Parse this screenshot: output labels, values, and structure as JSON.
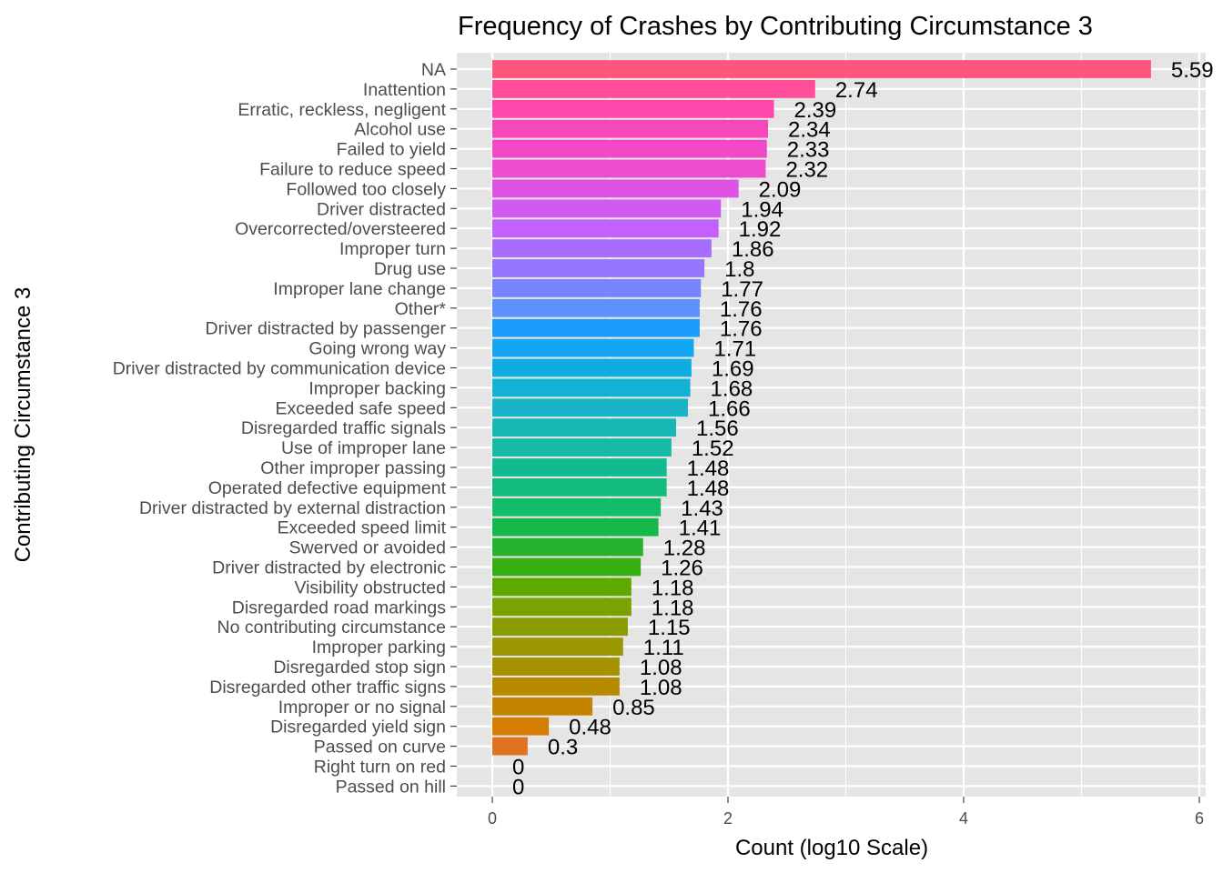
{
  "chart_data": {
    "type": "bar",
    "orientation": "horizontal",
    "title": "Frequency of Crashes by Contributing Circumstance 3",
    "xlabel": "Count (log10 Scale)",
    "ylabel": "Contributing Circumstance 3",
    "xlim": [
      0,
      6
    ],
    "x_ticks": [
      0,
      2,
      4,
      6
    ],
    "grid": true,
    "legend": "none",
    "categories": [
      "NA",
      "Inattention",
      "Erratic, reckless, negligent",
      "Alcohol use",
      "Failed to yield",
      "Failure to reduce speed",
      "Followed too closely",
      "Driver distracted",
      "Overcorrected/oversteered",
      "Improper turn",
      "Drug use",
      "Improper lane change",
      "Other*",
      "Driver distracted by passenger",
      "Going wrong way",
      "Driver distracted by communication device",
      "Improper backing",
      "Exceeded safe speed",
      "Disregarded traffic signals",
      "Use of improper lane",
      "Other improper passing",
      "Operated defective equipment",
      "Driver distracted by external distraction",
      "Exceeded speed limit",
      "Swerved or avoided",
      "Driver distracted by electronic",
      "Visibility obstructed",
      "Disregarded road markings",
      "No contributing circumstance",
      "Improper parking",
      "Disregarded stop sign",
      "Disregarded other traffic signs",
      "Improper or no signal",
      "Disregarded yield sign",
      "Passed on curve",
      "Right turn on red",
      "Passed on hill"
    ],
    "values": [
      5.59,
      2.74,
      2.39,
      2.34,
      2.33,
      2.32,
      2.09,
      1.94,
      1.92,
      1.86,
      1.8,
      1.77,
      1.76,
      1.76,
      1.71,
      1.69,
      1.68,
      1.66,
      1.56,
      1.52,
      1.48,
      1.48,
      1.43,
      1.41,
      1.28,
      1.26,
      1.18,
      1.18,
      1.15,
      1.11,
      1.08,
      1.08,
      0.85,
      0.48,
      0.3,
      0,
      0
    ],
    "value_labels": [
      "5.59",
      "2.74",
      "2.39",
      "2.34",
      "2.33",
      "2.32",
      "2.09",
      "1.94",
      "1.92",
      "1.86",
      "1.8",
      "1.77",
      "1.76",
      "1.76",
      "1.71",
      "1.69",
      "1.68",
      "1.66",
      "1.56",
      "1.52",
      "1.48",
      "1.48",
      "1.43",
      "1.41",
      "1.28",
      "1.26",
      "1.18",
      "1.18",
      "1.15",
      "1.11",
      "1.08",
      "1.08",
      "0.85",
      "0.48",
      "0.3",
      "0",
      "0"
    ],
    "colors": [
      "#FF5680",
      "#FF4D9A",
      "#FC48AE",
      "#F748BB",
      "#F349C6",
      "#EE4DD0",
      "#E051E6",
      "#D15AF3",
      "#C261FF",
      "#A86CFF",
      "#9476FF",
      "#7883FF",
      "#5E90FF",
      "#1A9DFF",
      "#13A6F3",
      "#0FABE3",
      "#12B1D6",
      "#16B4C6",
      "#17B7B5",
      "#16B9A3",
      "#14BA8F",
      "#13BB7C",
      "#13BC68",
      "#17B84A",
      "#25B32F",
      "#37AE12",
      "#5EA800",
      "#7AA200",
      "#8A9D00",
      "#9A9700",
      "#A69200",
      "#B68B00",
      "#C48400",
      "#D67D04",
      "#E2731E",
      "#EE6830",
      "#F85E44"
    ],
    "panel_background": "#E5E5E5",
    "grid_color": "#FFFFFF"
  }
}
